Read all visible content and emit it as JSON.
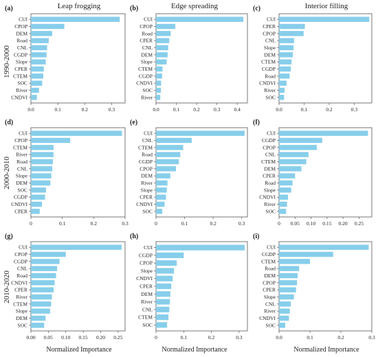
{
  "figure": {
    "column_titles": [
      "Leap frogging",
      "Edge spreading",
      "Interior filling"
    ],
    "row_labels": [
      "1990-2000",
      "2000-2010",
      "2010-2020"
    ],
    "xlabel": "Normalized Importance",
    "bar_color": "#87ceeb"
  },
  "chart_data": [
    {
      "type": "bar",
      "orientation": "horizontal",
      "panel": "(a)",
      "categories": [
        "CUI",
        "CPOP",
        "DEM",
        "Road",
        "CNL",
        "CGDP",
        "Slope",
        "CPER",
        "CTEM",
        "SOC",
        "River",
        "CNDVI"
      ],
      "values": [
        0.33,
        0.124,
        0.079,
        0.066,
        0.06,
        0.058,
        0.055,
        0.048,
        0.046,
        0.042,
        0.03,
        0.022
      ],
      "xlim": [
        0,
        0.35
      ],
      "xticks": [
        0.0,
        0.1,
        0.2,
        0.3
      ],
      "xtick_labels": [
        "0.0",
        "0.1",
        "0.2",
        "0.3"
      ]
    },
    {
      "type": "bar",
      "orientation": "horizontal",
      "panel": "(b)",
      "categories": [
        "CUI",
        "CPOP",
        "Road",
        "CPER",
        "CNL",
        "DEM",
        "Slope",
        "CTEM",
        "CGDP",
        "CNDVI",
        "SOC",
        "River"
      ],
      "values": [
        0.43,
        0.095,
        0.072,
        0.065,
        0.06,
        0.057,
        0.052,
        0.032,
        0.03,
        0.025,
        0.024,
        0.021
      ],
      "xlim": [
        0,
        0.45
      ],
      "xticks": [
        0.0,
        0.1,
        0.2,
        0.3,
        0.4
      ],
      "xtick_labels": [
        "0.0",
        "0.1",
        "0.2",
        "0.3",
        "0.4"
      ]
    },
    {
      "type": "bar",
      "orientation": "horizontal",
      "panel": "(c)",
      "categories": [
        "CUI",
        "CPER",
        "CPOP",
        "CNL",
        "Slope",
        "DEM",
        "CTEM",
        "CGDP",
        "Road",
        "CNDVI",
        "River",
        "SOC"
      ],
      "values": [
        0.36,
        0.103,
        0.098,
        0.06,
        0.058,
        0.055,
        0.05,
        0.047,
        0.042,
        0.03,
        0.022,
        0.02
      ],
      "xlim": [
        0,
        0.37
      ],
      "xticks": [
        0.0,
        0.1,
        0.2,
        0.3
      ],
      "xtick_labels": [
        "0.0",
        "0.1",
        "0.2",
        "0.3"
      ]
    },
    {
      "type": "bar",
      "orientation": "horizontal",
      "panel": "(d)",
      "categories": [
        "CUI",
        "CPOP",
        "CTEM",
        "River",
        "Road",
        "CNL",
        "Slope",
        "DEM",
        "SOC",
        "CGDP",
        "CNDVI",
        "CPER"
      ],
      "values": [
        0.29,
        0.125,
        0.072,
        0.072,
        0.07,
        0.068,
        0.065,
        0.062,
        0.048,
        0.045,
        0.035,
        0.028
      ],
      "xlim": [
        0,
        0.3
      ],
      "xticks": [
        0.0,
        0.1,
        0.2,
        0.3
      ],
      "xtick_labels": [
        "0",
        "0.1",
        "0.2",
        "0.3"
      ]
    },
    {
      "type": "bar",
      "orientation": "horizontal",
      "panel": "(e)",
      "categories": [
        "CUI",
        "CNL",
        "CTEM",
        "Road",
        "CGDP",
        "CPOP",
        "DEM",
        "River",
        "Slope",
        "CPER",
        "CNDVI",
        "SOC"
      ],
      "values": [
        0.31,
        0.125,
        0.095,
        0.085,
        0.08,
        0.07,
        0.05,
        0.04,
        0.038,
        0.035,
        0.03,
        0.022
      ],
      "xlim": [
        0,
        0.32
      ],
      "xticks": [
        0.0,
        0.1,
        0.2,
        0.3
      ],
      "xtick_labels": [
        "0",
        "0.1",
        "0.2",
        "0.3"
      ]
    },
    {
      "type": "bar",
      "orientation": "horizontal",
      "panel": "(f)",
      "categories": [
        "CUI",
        "CGDP",
        "CPOP",
        "CNL",
        "CTEM",
        "DEM",
        "CPER",
        "Road",
        "Slope",
        "CNDVI",
        "River",
        "SOC"
      ],
      "values": [
        0.278,
        0.135,
        0.118,
        0.092,
        0.085,
        0.07,
        0.05,
        0.042,
        0.038,
        0.028,
        0.025,
        0.022
      ],
      "xlim": [
        0,
        0.29
      ],
      "xticks": [
        0.0,
        0.05,
        0.1,
        0.15,
        0.2,
        0.25
      ],
      "xtick_labels": [
        "0",
        "0.05",
        "0.10",
        "0.15",
        "0.20",
        "0.25"
      ]
    },
    {
      "type": "bar",
      "orientation": "horizontal",
      "panel": "(g)",
      "categories": [
        "CUI",
        "CPOP",
        "CGDP",
        "CNL",
        "Road",
        "CNDVI",
        "CPER",
        "River",
        "CTEM",
        "Slope",
        "DEM",
        "SOC"
      ],
      "values": [
        0.26,
        0.1,
        0.082,
        0.075,
        0.072,
        0.068,
        0.065,
        0.06,
        0.058,
        0.055,
        0.042,
        0.038
      ],
      "xlim": [
        0,
        0.27
      ],
      "xticks": [
        0.0,
        0.05,
        0.1,
        0.15,
        0.2,
        0.25
      ],
      "xtick_labels": [
        "0.00",
        "0.05",
        "0.10",
        "0.15",
        "0.20",
        "0.25"
      ]
    },
    {
      "type": "bar",
      "orientation": "horizontal",
      "panel": "(h)",
      "categories": [
        "CUI",
        "CGDP",
        "CPOP",
        "Slope",
        "CNDVI",
        "CPER",
        "DEM",
        "River",
        "CNL",
        "CTEM",
        "SOC"
      ],
      "values": [
        0.32,
        0.1,
        0.075,
        0.065,
        0.06,
        0.055,
        0.052,
        0.05,
        0.048,
        0.045,
        0.04
      ],
      "xlim": [
        0,
        0.33
      ],
      "xticks": [
        0.0,
        0.1,
        0.2,
        0.3
      ],
      "xtick_labels": [
        "0",
        "0.1",
        "0.2",
        "0.3"
      ]
    },
    {
      "type": "bar",
      "orientation": "horizontal",
      "panel": "(i)",
      "categories": [
        "CUI",
        "CGDP",
        "CTEM",
        "Road",
        "DEM",
        "CPOP",
        "CPER",
        "Slope",
        "CNL",
        "River",
        "CNDVI",
        "SOC"
      ],
      "values": [
        0.29,
        0.175,
        0.1,
        0.065,
        0.06,
        0.058,
        0.055,
        0.048,
        0.038,
        0.035,
        0.032,
        0.02
      ],
      "xlim": [
        0,
        0.3
      ],
      "xticks": [
        0.0,
        0.1,
        0.2,
        0.3
      ],
      "xtick_labels": [
        "0.0",
        "0.1",
        "0.2",
        "0.3"
      ]
    }
  ]
}
